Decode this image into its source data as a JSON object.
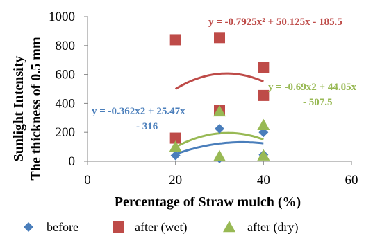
{
  "chart_data": {
    "type": "scatter",
    "xlabel": "Percentage of Straw mulch (%)",
    "ylabel": [
      "The  thickness of 0.5 mm",
      "Sunlight Intensity"
    ],
    "xlim": [
      0,
      60
    ],
    "ylim": [
      0,
      1000
    ],
    "x_ticks": [
      "0",
      "20",
      "40",
      "60"
    ],
    "y_ticks": [
      "0",
      "200",
      "400",
      "600",
      "800",
      "1000"
    ],
    "grid": false,
    "legend_position": "bottom",
    "series": [
      {
        "name": "before",
        "color": "#4a7ebb",
        "marker": "diamond",
        "points": [
          [
            20,
            40
          ],
          [
            30,
            20
          ],
          [
            30,
            225
          ],
          [
            40,
            45
          ],
          [
            40,
            200
          ]
        ],
        "trendline": {
          "a": -0.362,
          "b": 25.47,
          "c": -316,
          "x_range": [
            20,
            40
          ]
        },
        "equation": [
          "y = -0.362x2 + 25.47x",
          "- 316"
        ]
      },
      {
        "name": "after (wet)",
        "color": "#be4b48",
        "marker": "square",
        "points": [
          [
            20,
            840
          ],
          [
            20,
            160
          ],
          [
            30,
            855
          ],
          [
            30,
            350
          ],
          [
            40,
            650
          ],
          [
            40,
            455
          ]
        ],
        "trendline": {
          "a": -0.7925,
          "b": 50.125,
          "c": -185.5,
          "x_range": [
            20,
            40
          ]
        },
        "equation": [
          "y = -0.7925x² + 50.125x - 185.5"
        ]
      },
      {
        "name": "after (dry)",
        "color": "#98b954",
        "marker": "triangle",
        "points": [
          [
            20,
            100
          ],
          [
            30,
            35
          ],
          [
            30,
            345
          ],
          [
            40,
            40
          ],
          [
            40,
            250
          ]
        ],
        "trendline": {
          "a": -0.69,
          "b": 44.05,
          "c": -507.5,
          "x_range": [
            20,
            40
          ]
        },
        "equation": [
          "y = -0.69x2 + 44.05x",
          "- 507.5"
        ]
      }
    ]
  }
}
